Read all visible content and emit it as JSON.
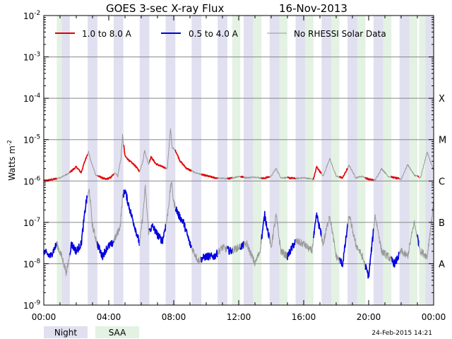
{
  "chart_data": {
    "type": "line",
    "title": "GOES 3-sec X-ray Flux",
    "date_label": "16-Nov-2013",
    "ylabel": "Watts m",
    "ylabel_exp": "-2",
    "yscale": "log",
    "ylim": [
      1e-09,
      0.01
    ],
    "xlim": [
      0,
      24
    ],
    "x_unit": "hours UT",
    "grid": true,
    "legend_position": "top-left",
    "y_ticks": [
      {
        "value": 0.01,
        "base": "10",
        "exp": "-2"
      },
      {
        "value": 0.001,
        "base": "10",
        "exp": "-3"
      },
      {
        "value": 0.0001,
        "base": "10",
        "exp": "-4"
      },
      {
        "value": 1e-05,
        "base": "10",
        "exp": "-5"
      },
      {
        "value": 1e-06,
        "base": "10",
        "exp": "-6"
      },
      {
        "value": 1e-07,
        "base": "10",
        "exp": "-7"
      },
      {
        "value": 1e-08,
        "base": "10",
        "exp": "-8"
      },
      {
        "value": 1e-09,
        "base": "10",
        "exp": "-9"
      }
    ],
    "x_ticks": [
      {
        "value": 0,
        "label": "00:00"
      },
      {
        "value": 4,
        "label": "04:00"
      },
      {
        "value": 8,
        "label": "08:00"
      },
      {
        "value": 12,
        "label": "12:00"
      },
      {
        "value": 16,
        "label": "16:00"
      },
      {
        "value": 20,
        "label": "20:00"
      },
      {
        "value": 24,
        "label": "00:00"
      }
    ],
    "flare_classes": [
      {
        "label": "X",
        "value": 0.0001
      },
      {
        "label": "M",
        "value": 1e-05
      },
      {
        "label": "C",
        "value": 1e-06
      },
      {
        "label": "B",
        "value": 1e-07
      },
      {
        "label": "A",
        "value": 1e-08
      }
    ],
    "night_intervals": [
      [
        1.1,
        1.6
      ],
      [
        2.7,
        3.3
      ],
      [
        4.3,
        4.9
      ],
      [
        5.9,
        6.5
      ],
      [
        7.5,
        8.1
      ],
      [
        9.1,
        9.7
      ],
      [
        10.7,
        11.3
      ],
      [
        12.3,
        12.9
      ],
      [
        13.9,
        14.5
      ],
      [
        15.5,
        16.1
      ],
      [
        17.1,
        17.7
      ],
      [
        18.7,
        19.3
      ],
      [
        20.3,
        20.9
      ],
      [
        21.9,
        22.5
      ],
      [
        23.5,
        24.0
      ]
    ],
    "saa_intervals": [
      [
        0.8,
        1.1
      ],
      [
        11.6,
        12.1
      ],
      [
        12.9,
        13.4
      ],
      [
        14.5,
        15.0
      ],
      [
        16.1,
        16.6
      ],
      [
        17.7,
        18.2
      ],
      [
        19.3,
        19.8
      ],
      [
        20.9,
        21.4
      ],
      [
        22.5,
        23.0
      ],
      [
        23.1,
        23.5
      ]
    ],
    "legend_bottom": [
      {
        "label": "Night",
        "color": "#e0e0f0"
      },
      {
        "label": "SAA",
        "color": "#e3f2e3"
      }
    ],
    "timestamp": "24-Feb-2015 14:21",
    "series": [
      {
        "name": "1.0 to 8.0 A",
        "color": "#e00000",
        "x": [
          0,
          0.6,
          1.0,
          1.5,
          2.0,
          2.3,
          2.5,
          2.75,
          2.9,
          3.2,
          3.8,
          4.1,
          4.4,
          4.55,
          4.75,
          4.85,
          5.0,
          5.3,
          5.6,
          5.9,
          6.1,
          6.2,
          6.45,
          6.6,
          6.9,
          7.3,
          7.6,
          7.8,
          7.9,
          8.1,
          8.4,
          8.8,
          9.3,
          9.8,
          10.5,
          11.0,
          11.5,
          12.0,
          12.5,
          13.0,
          13.5,
          14.0,
          14.3,
          14.6,
          15.0,
          15.5,
          16.0,
          16.6,
          16.8,
          17.2,
          17.6,
          18.0,
          18.4,
          18.8,
          19.2,
          19.6,
          20.0,
          20.4,
          20.8,
          21.2,
          21.6,
          22.0,
          22.4,
          22.8,
          23.2,
          23.6,
          24.0
        ],
        "y": [
          1e-06,
          1.1e-06,
          1.2e-06,
          1.5e-06,
          2.2e-06,
          1.6e-06,
          2.8e-06,
          5.2e-06,
          3e-06,
          1.4e-06,
          1.1e-06,
          1.2e-06,
          1.6e-06,
          1.3e-06,
          3.5e-06,
          1.3e-05,
          4e-06,
          3e-06,
          2.4e-06,
          1.7e-06,
          3e-06,
          5.5e-06,
          2.5e-06,
          3.8e-06,
          2.6e-06,
          2.2e-06,
          2e-06,
          1.8e-05,
          6.5e-06,
          5.5e-06,
          3e-06,
          2e-06,
          1.6e-06,
          1.4e-06,
          1.2e-06,
          1.15e-06,
          1.15e-06,
          1.3e-06,
          1.2e-06,
          1.25e-06,
          1.15e-06,
          1.3e-06,
          2e-06,
          1.2e-06,
          1.2e-06,
          1.15e-06,
          1.2e-06,
          1.1e-06,
          2.2e-06,
          1.3e-06,
          3.5e-06,
          1.3e-06,
          1.2e-06,
          2.4e-06,
          1.2e-06,
          1.3e-06,
          1.1e-06,
          1.05e-06,
          2e-06,
          1.3e-06,
          1.2e-06,
          1.1e-06,
          2.5e-06,
          1.4e-06,
          1.2e-06,
          5e-06,
          1.8e-06
        ]
      },
      {
        "name": "0.5 to 4.0 A",
        "color": "#0000e0",
        "x": [
          0,
          0.4,
          0.8,
          1.1,
          1.4,
          1.7,
          2.0,
          2.3,
          2.6,
          2.8,
          3.0,
          3.3,
          3.6,
          3.9,
          4.2,
          4.5,
          4.7,
          4.85,
          5.0,
          5.3,
          5.6,
          5.9,
          6.1,
          6.25,
          6.45,
          6.7,
          7.0,
          7.3,
          7.6,
          7.85,
          8.0,
          8.3,
          8.6,
          9.0,
          9.5,
          10.0,
          10.5,
          11.0,
          11.5,
          12.0,
          12.5,
          13.0,
          13.3,
          13.6,
          14.0,
          14.3,
          14.6,
          15.0,
          15.5,
          16.0,
          16.5,
          16.8,
          17.2,
          17.6,
          18.0,
          18.4,
          18.8,
          19.2,
          19.6,
          20.0,
          20.4,
          20.8,
          21.2,
          21.6,
          22.0,
          22.4,
          22.8,
          23.2,
          23.6,
          24.0
        ],
        "y": [
          2e-08,
          1.5e-08,
          3e-08,
          1.5e-08,
          6e-09,
          3e-08,
          2e-08,
          3e-08,
          3e-07,
          6e-07,
          8e-08,
          3e-08,
          1.5e-08,
          2.5e-08,
          3e-08,
          5e-08,
          8e-08,
          4e-07,
          6e-07,
          2e-07,
          8e-08,
          3e-08,
          1.5e-07,
          7e-07,
          6e-08,
          8e-08,
          5e-08,
          3.5e-08,
          1.3e-07,
          1e-06,
          3e-07,
          1.5e-07,
          1e-07,
          3e-08,
          1.2e-08,
          1.5e-08,
          1.5e-08,
          2.5e-08,
          2e-08,
          2.5e-08,
          3e-08,
          1e-08,
          2e-08,
          1.5e-07,
          2.5e-08,
          1.5e-07,
          2e-08,
          1.5e-08,
          3.5e-08,
          3e-08,
          2e-08,
          1.5e-07,
          3e-08,
          1.5e-07,
          1.5e-08,
          1e-08,
          1.5e-07,
          3e-08,
          1.5e-08,
          5e-09,
          1.5e-07,
          2e-08,
          1.5e-08,
          1e-08,
          2e-08,
          1.5e-08,
          1e-07,
          2e-08,
          1.5e-08,
          3e-07
        ]
      }
    ],
    "legend": [
      {
        "label": "1.0 to 8.0 A",
        "color": "#e00000"
      },
      {
        "label": "0.5 to 4.0 A",
        "color": "#0000e0"
      },
      {
        "label": "No RHESSI Solar Data",
        "color": "#999999"
      }
    ]
  }
}
